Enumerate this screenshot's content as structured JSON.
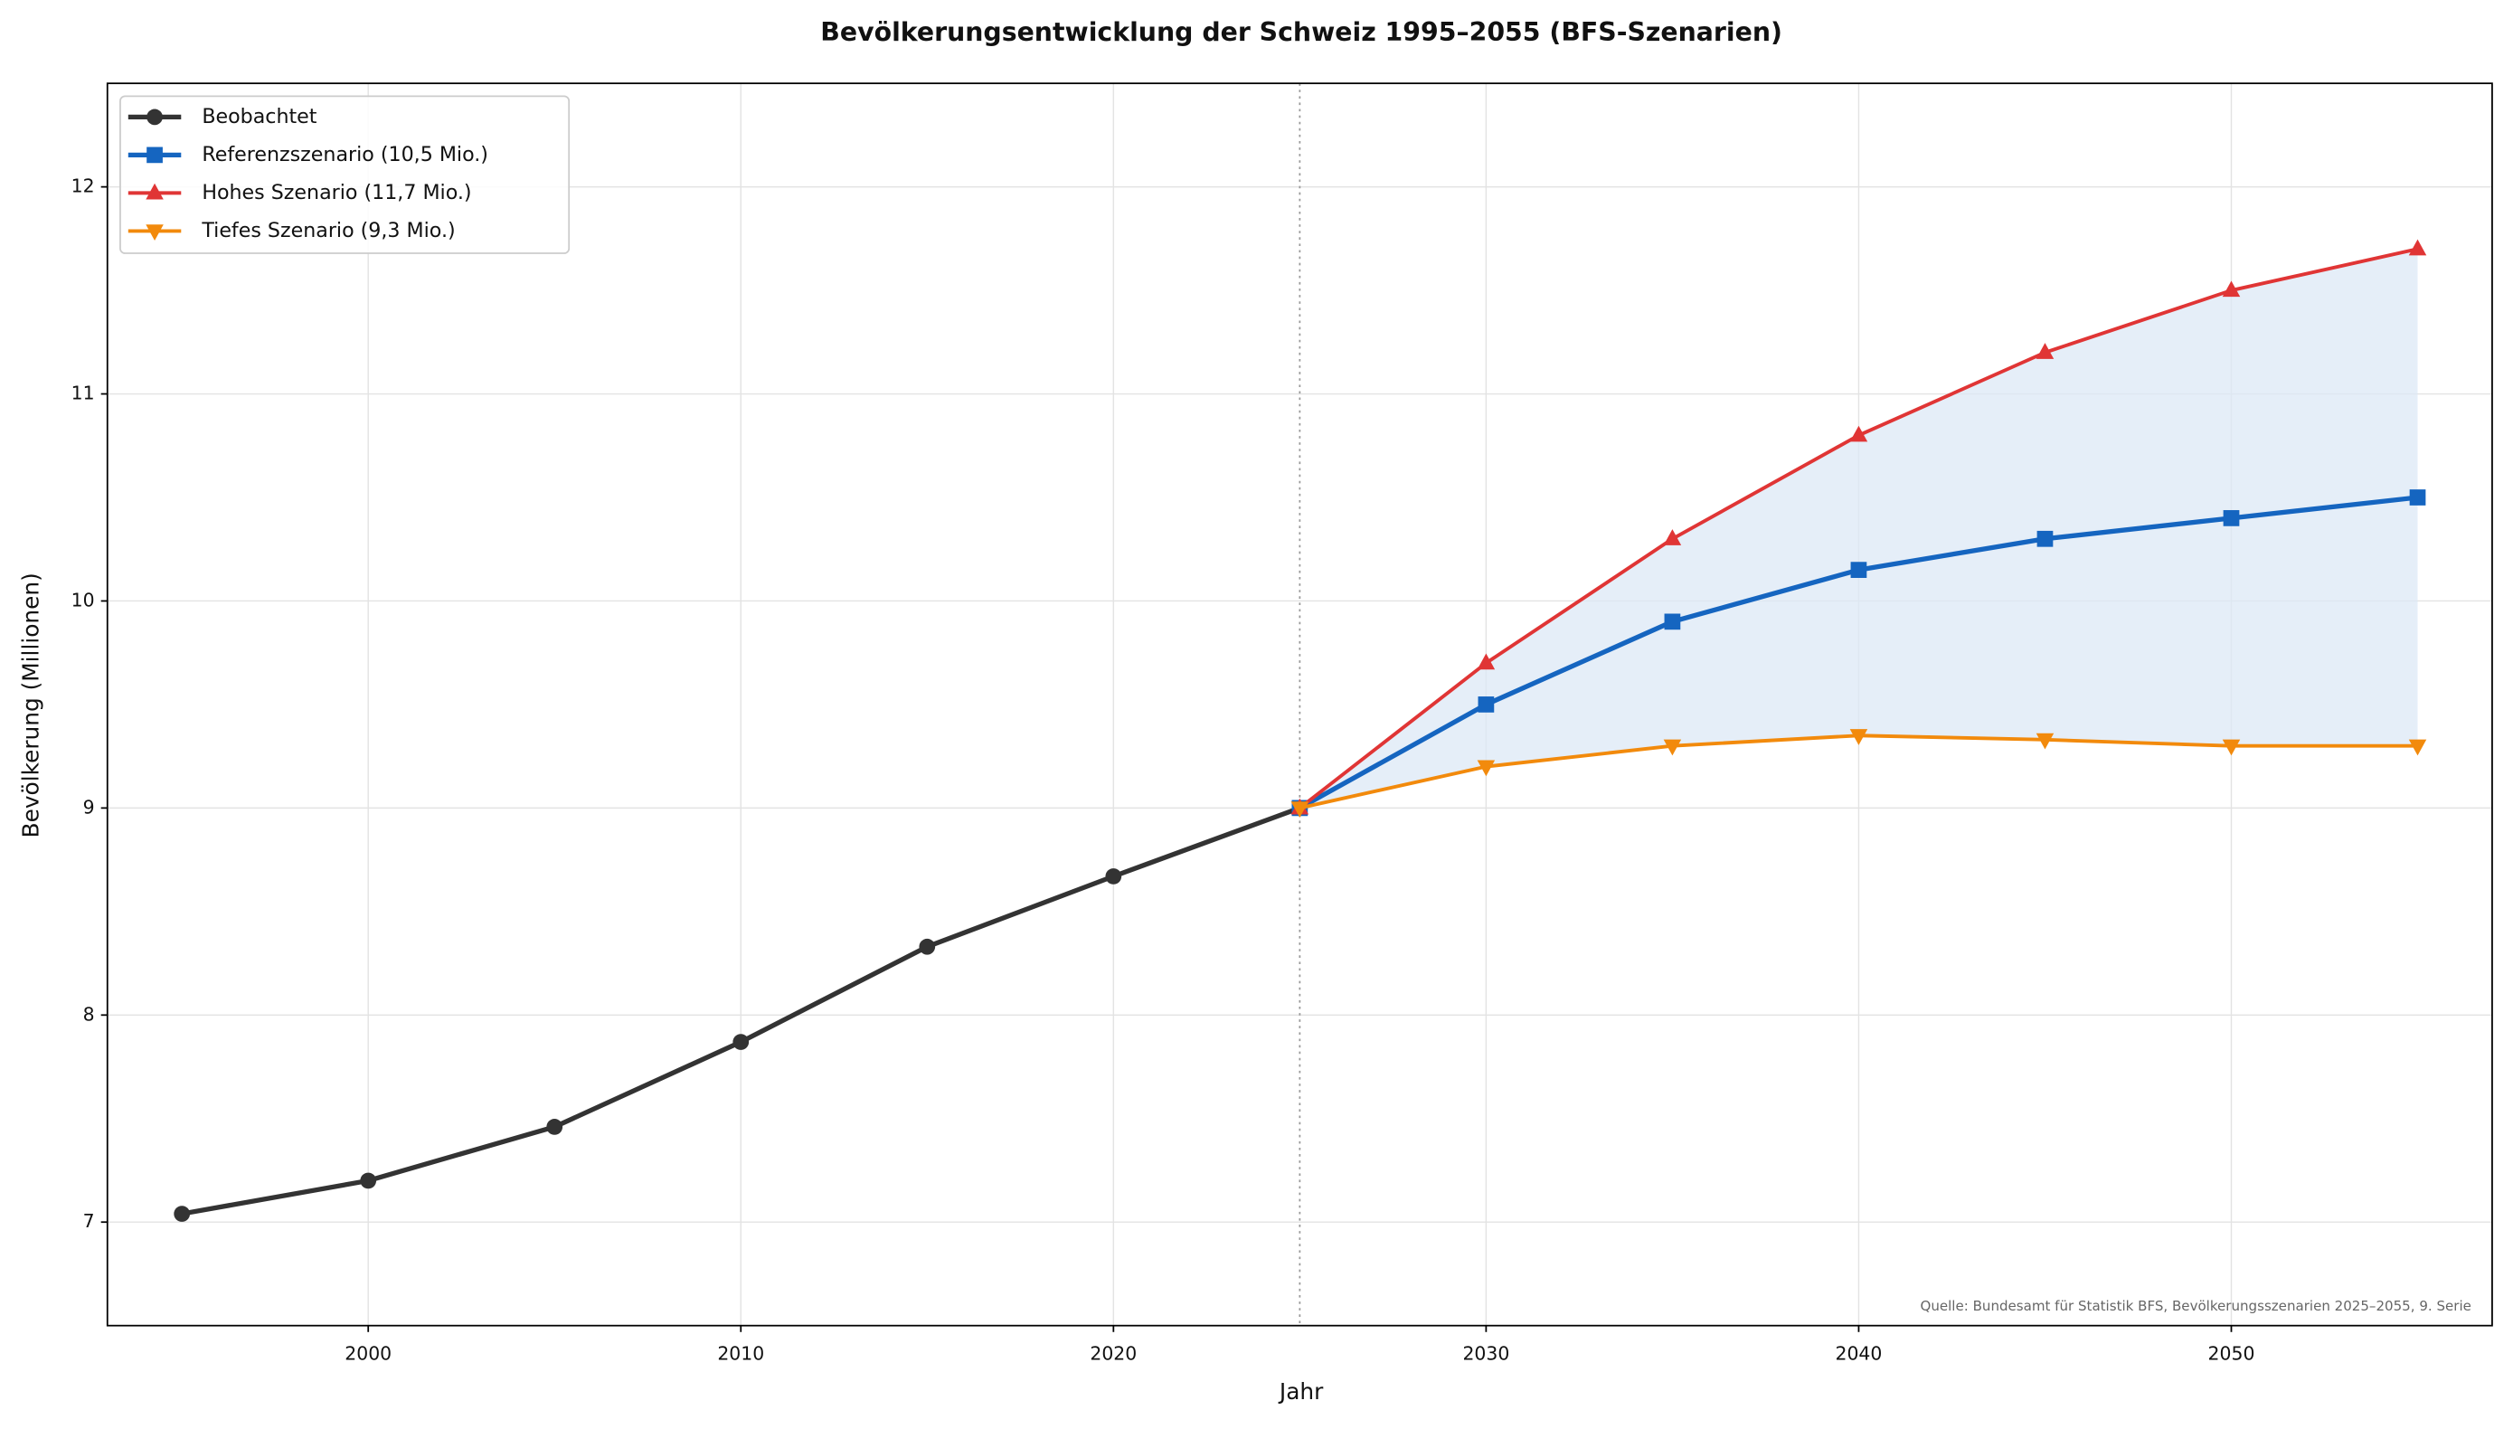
{
  "chart_data": {
    "type": "line",
    "title": "Bevölkerungsentwicklung der Schweiz 1995–2055 (BFS-Szenarien)",
    "x_label": "Jahr",
    "y_label": "Bevölkerung (Millionen)",
    "source": "Quelle: Bundesamt für Statistik BFS, Bevölkerungsszenarien 2025–2055, 9. Serie",
    "xlim": [
      1993,
      2057
    ],
    "ylim": [
      6.5,
      12.5
    ],
    "xticks": [
      2000,
      2010,
      2020,
      2030,
      2040,
      2050
    ],
    "yticks": [
      7,
      8,
      9,
      10,
      11,
      12
    ],
    "grid": true,
    "legend": "upper left",
    "vline": 2025,
    "band_color": "#dce8f5",
    "series": [
      {
        "name": "Beobachtet",
        "color": "#333333",
        "marker": "circle",
        "x": [
          1995,
          2000,
          2005,
          2010,
          2015,
          2020,
          2025
        ],
        "values": [
          7.04,
          7.2,
          7.46,
          7.87,
          8.33,
          8.67,
          9.0
        ]
      },
      {
        "name": "Referenzszenario (10,5 Mio.)",
        "color": "#1565c0",
        "marker": "square",
        "x": [
          2025,
          2030,
          2035,
          2040,
          2045,
          2050,
          2055
        ],
        "values": [
          9.0,
          9.5,
          9.9,
          10.15,
          10.3,
          10.4,
          10.5
        ]
      },
      {
        "name": "Hohes Szenario (11,7 Mio.)",
        "color": "#e03535",
        "marker": "triangle-up",
        "x": [
          2025,
          2030,
          2035,
          2040,
          2045,
          2050,
          2055
        ],
        "values": [
          9.0,
          9.7,
          10.3,
          10.8,
          11.2,
          11.5,
          11.7
        ]
      },
      {
        "name": "Tiefes Szenario (9,3 Mio.)",
        "color": "#f28a0c",
        "marker": "triangle-down",
        "x": [
          2025,
          2030,
          2035,
          2040,
          2045,
          2050,
          2055
        ],
        "values": [
          9.0,
          9.2,
          9.3,
          9.35,
          9.33,
          9.3,
          9.3
        ]
      }
    ]
  }
}
